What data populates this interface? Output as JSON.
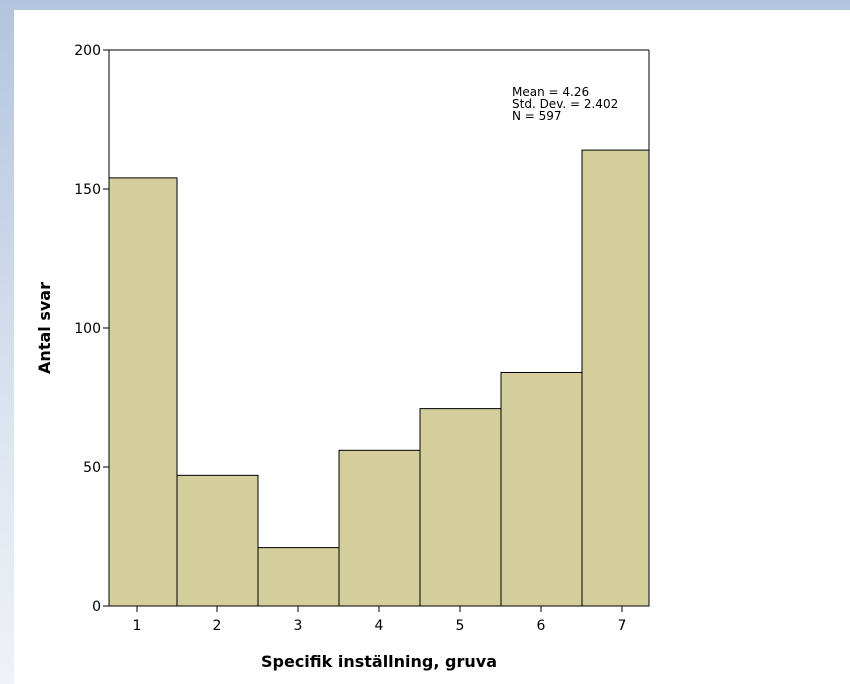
{
  "chart_data": {
    "type": "bar",
    "chart_subtype": "histogram",
    "categories": [
      "1",
      "2",
      "3",
      "4",
      "5",
      "6",
      "7"
    ],
    "values": [
      154,
      47,
      21,
      56,
      71,
      84,
      164
    ],
    "xlabel": "Specifik inställning, gruva",
    "ylabel": "Antal svar",
    "ylim": [
      0,
      200
    ],
    "yticks": [
      "0",
      "50",
      "100",
      "150",
      "200"
    ],
    "bar_color": "#d3ce9b",
    "grid": false,
    "stats": {
      "mean": "Mean = 4.26",
      "std": "Std. Dev. = 2.402",
      "n": "N = 597"
    }
  }
}
